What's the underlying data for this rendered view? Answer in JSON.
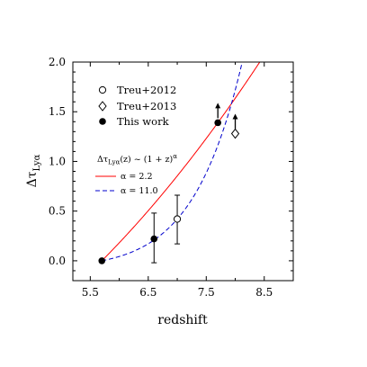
{
  "chart_data": {
    "type": "scatter",
    "xlabel": "redshift",
    "ylabel": "Δτ_Lyα",
    "xlim": [
      5.2,
      9.0
    ],
    "ylim": [
      -0.2,
      2.0
    ],
    "x_ticks": [
      5.5,
      6.5,
      7.5,
      8.5
    ],
    "y_ticks": [
      0.0,
      0.5,
      1.0,
      1.5,
      2.0
    ],
    "x_tick_labels": [
      "5.5",
      "6.5",
      "7.5",
      "8.5"
    ],
    "y_tick_labels": [
      "0.0",
      "0.5",
      "1.0",
      "1.5",
      "2.0"
    ],
    "grid": false,
    "legend_points": {
      "placement": "top-left",
      "entries": [
        {
          "label": "Treu+2012",
          "marker": "open-circle"
        },
        {
          "label": "Treu+2013",
          "marker": "open-diamond"
        },
        {
          "label": "This work",
          "marker": "filled-circle"
        }
      ]
    },
    "legend_lines": {
      "title": "Δτ_Lyα(z) ~ (1 + z)^α",
      "entries": [
        {
          "label": "α = 2.2",
          "style": "solid",
          "color": "#ff0000"
        },
        {
          "label": "α = 11.0",
          "style": "dashed",
          "color": "#0000cc"
        }
      ]
    },
    "series": [
      {
        "name": "This work",
        "marker": "filled-circle",
        "points": [
          {
            "x": 5.7,
            "y": 0.0
          },
          {
            "x": 6.6,
            "y": 0.22,
            "err_low": 0.24,
            "err_high": 0.26
          },
          {
            "x": 7.7,
            "y": 1.39,
            "lower_limit": true
          }
        ]
      },
      {
        "name": "Treu+2012",
        "marker": "open-circle",
        "points": [
          {
            "x": 7.0,
            "y": 0.42,
            "err_low": 0.25,
            "err_high": 0.24
          }
        ]
      },
      {
        "name": "Treu+2013",
        "marker": "open-diamond",
        "points": [
          {
            "x": 8.0,
            "y": 1.28,
            "lower_limit": true
          }
        ]
      }
    ],
    "curves": [
      {
        "name": "α = 2.2",
        "alpha": 2.2,
        "z0": 5.7,
        "color": "#ff0000",
        "style": "solid",
        "x": [
          5.7,
          6.0,
          6.3,
          6.6,
          6.9,
          7.2,
          7.5,
          7.7,
          8.0
        ],
        "y": [
          0.0,
          0.047,
          0.111,
          0.22,
          0.37,
          0.6,
          0.9,
          1.39,
          1.95
        ]
      },
      {
        "name": "α = 11.0",
        "alpha": 11.0,
        "z0": 5.7,
        "color": "#0000cc",
        "style": "dashed",
        "x": [
          5.7,
          6.5,
          6.7,
          6.8,
          6.9,
          7.0,
          7.1,
          7.2,
          7.3
        ],
        "y": [
          0.0,
          0.0,
          0.02,
          0.06,
          0.18,
          0.42,
          0.9,
          1.5,
          2.0
        ]
      }
    ]
  }
}
